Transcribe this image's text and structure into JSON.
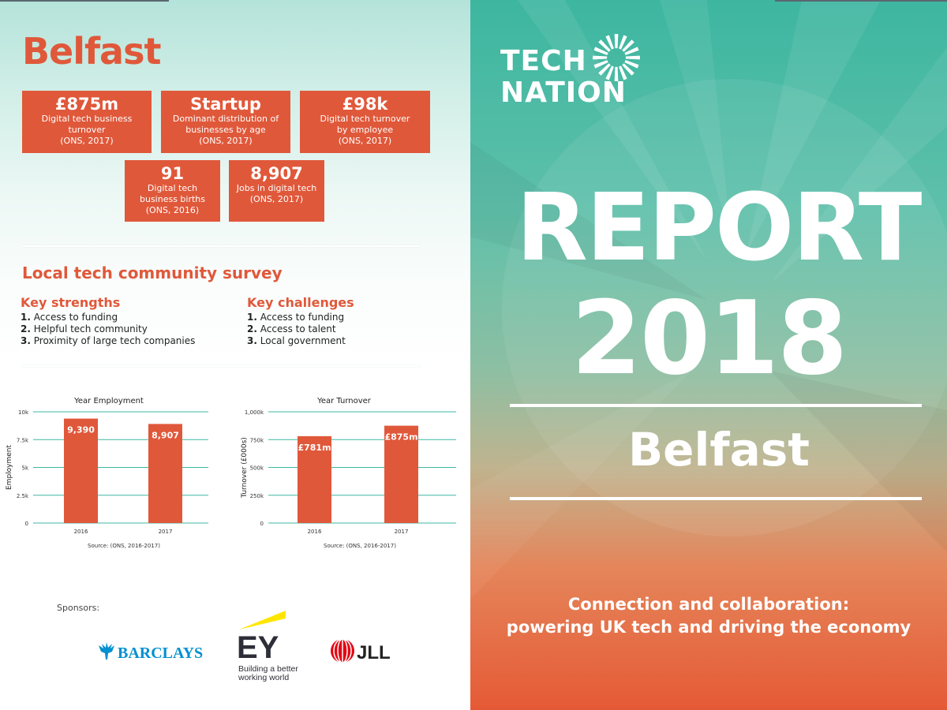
{
  "left": {
    "title": "Belfast",
    "stats": [
      {
        "value": "£875m",
        "lines": [
          "Digital tech business",
          "turnover",
          "(ONS, 2017)"
        ]
      },
      {
        "value": "Startup",
        "lines": [
          "Dominant distribution of",
          "businesses by age",
          "(ONS, 2017)"
        ]
      },
      {
        "value": "£98k",
        "lines": [
          "Digital tech turnover",
          "by employee",
          "(ONS, 2017)"
        ]
      },
      {
        "value": "91",
        "lines": [
          "Digital tech",
          "business births",
          "(ONS, 2016)"
        ]
      },
      {
        "value": "8,907",
        "lines": [
          "Jobs in digital tech",
          "(ONS, 2017)"
        ]
      }
    ],
    "survey": {
      "title": "Local tech community survey",
      "strengths": {
        "heading": "Key strengths",
        "items": [
          {
            "num": "1.",
            "text": "Access to funding"
          },
          {
            "num": "2.",
            "text": "Helpful tech community"
          },
          {
            "num": "3.",
            "text": "Proximity of large tech companies"
          }
        ]
      },
      "challenges": {
        "heading": "Key challenges",
        "items": [
          {
            "num": "1.",
            "text": "Access to funding"
          },
          {
            "num": "2.",
            "text": "Access to talent"
          },
          {
            "num": "3.",
            "text": "Local government"
          }
        ]
      }
    },
    "sponsors": {
      "label": "Sponsors:",
      "barclays": "BARCLAYS",
      "ey": "EY",
      "ey_tagline": [
        "Building a better",
        "working world"
      ],
      "jll": "JLL"
    }
  },
  "chart_data": [
    {
      "type": "bar",
      "title": "Year Employment",
      "categories": [
        "2016",
        "2017"
      ],
      "values": [
        9390,
        8907
      ],
      "data_labels": [
        "9,390",
        "8,907"
      ],
      "ylabel": "Employment",
      "ylim": [
        0,
        10000
      ],
      "yticks": [
        0,
        2500,
        5000,
        7500,
        10000
      ],
      "ytick_labels": [
        "0",
        "2.5k",
        "5k",
        "7.5k",
        "10k"
      ],
      "source": "Source: (ONS, 2016-2017)",
      "grid": true,
      "bar_color": "#e0583a",
      "grid_color": "#3fb7a4"
    },
    {
      "type": "bar",
      "title": "Year Turnover",
      "categories": [
        "2016",
        "2017"
      ],
      "values": [
        781000,
        875000
      ],
      "data_labels": [
        "£781m",
        "£875m"
      ],
      "ylabel": "Turnover (£000s)",
      "ylim": [
        0,
        1000000
      ],
      "yticks": [
        0,
        250000,
        500000,
        750000,
        1000000
      ],
      "ytick_labels": [
        "0",
        "250k",
        "500k",
        "750k",
        "1,000k"
      ],
      "source": "Source: (ONS, 2016-2017)",
      "grid": true,
      "bar_color": "#e0583a",
      "grid_color": "#3fb7a4"
    }
  ],
  "right": {
    "logo_line1": "TECH",
    "logo_line2": "NATION",
    "report_word": "REPORT",
    "report_year": "2018",
    "city": "Belfast",
    "tagline_line1": "Connection and collaboration:",
    "tagline_line2": "powering UK tech and driving the economy"
  },
  "colors": {
    "accent": "#e0583a",
    "teal": "#3fb7a4",
    "white": "#ffffff"
  }
}
